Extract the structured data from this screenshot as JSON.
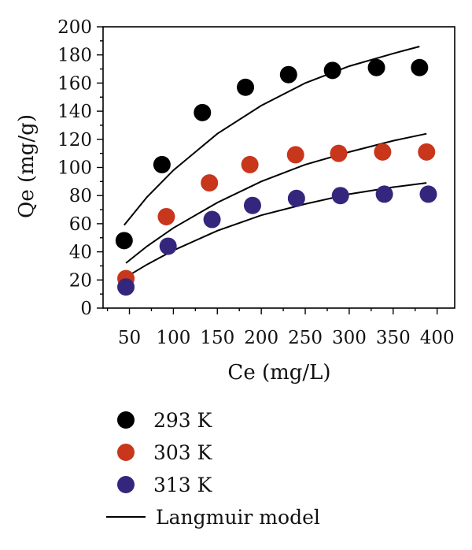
{
  "chart_data": {
    "type": "scatter",
    "title": "",
    "xlabel": "Ce (mg/L)",
    "ylabel": "Qe (mg/g)",
    "xlim": [
      20,
      420
    ],
    "ylim": [
      0,
      200
    ],
    "xticks": [
      50,
      100,
      150,
      200,
      250,
      300,
      350,
      400
    ],
    "yticks": [
      0,
      20,
      40,
      60,
      80,
      100,
      120,
      140,
      160,
      180,
      200
    ],
    "grid": false,
    "legend_position": "bottom",
    "series": [
      {
        "name": "293 K",
        "color": "#000000",
        "points": [
          [
            44,
            48
          ],
          [
            87,
            102
          ],
          [
            133,
            139
          ],
          [
            182,
            157
          ],
          [
            231,
            166
          ],
          [
            281,
            169
          ],
          [
            331,
            171
          ],
          [
            380,
            171
          ]
        ]
      },
      {
        "name": "303 K",
        "color": "#c8361c",
        "points": [
          [
            46,
            21
          ],
          [
            92,
            65
          ],
          [
            141,
            89
          ],
          [
            187,
            102
          ],
          [
            239,
            109
          ],
          [
            288,
            110
          ],
          [
            338,
            111
          ],
          [
            388,
            111
          ]
        ]
      },
      {
        "name": "313 K",
        "color": "#35267d",
        "points": [
          [
            46,
            15
          ],
          [
            94,
            44
          ],
          [
            144,
            63
          ],
          [
            190,
            73
          ],
          [
            240,
            78
          ],
          [
            290,
            80
          ],
          [
            340,
            81
          ],
          [
            390,
            81
          ]
        ]
      }
    ],
    "fits": [
      {
        "name": "Langmuir model",
        "color": "#000000",
        "for": "293 K",
        "points": [
          [
            44,
            59
          ],
          [
            70,
            79
          ],
          [
            100,
            98
          ],
          [
            150,
            124
          ],
          [
            200,
            144
          ],
          [
            250,
            160
          ],
          [
            300,
            172
          ],
          [
            350,
            181
          ],
          [
            380,
            186
          ]
        ]
      },
      {
        "name": "Langmuir model",
        "color": "#000000",
        "for": "303 K",
        "points": [
          [
            46,
            32
          ],
          [
            70,
            44
          ],
          [
            100,
            57
          ],
          [
            150,
            75
          ],
          [
            200,
            90
          ],
          [
            250,
            102
          ],
          [
            300,
            111
          ],
          [
            350,
            119
          ],
          [
            388,
            124
          ]
        ]
      },
      {
        "name": "Langmuir model",
        "color": "#000000",
        "for": "313 K",
        "points": [
          [
            46,
            22
          ],
          [
            70,
            31
          ],
          [
            100,
            41
          ],
          [
            150,
            55
          ],
          [
            200,
            66
          ],
          [
            250,
            74
          ],
          [
            300,
            81
          ],
          [
            350,
            86
          ],
          [
            388,
            89
          ]
        ]
      }
    ],
    "legend": [
      {
        "label": "293 K",
        "marker": "circle",
        "color": "#000000"
      },
      {
        "label": "303 K",
        "marker": "circle",
        "color": "#c8361c"
      },
      {
        "label": "313 K",
        "marker": "circle",
        "color": "#35267d"
      },
      {
        "label": "Langmuir model",
        "marker": "line",
        "color": "#000000"
      }
    ]
  }
}
